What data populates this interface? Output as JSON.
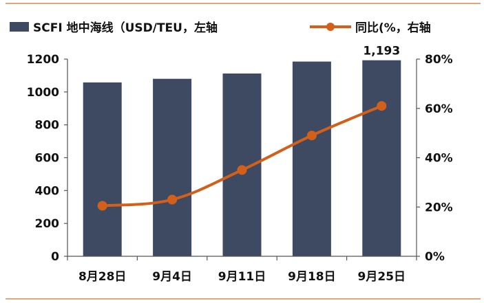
{
  "chart_data": {
    "type": "bar",
    "categories": [
      "8月28日",
      "9月4日",
      "9月11日",
      "9月18日",
      "9月25日"
    ],
    "series": [
      {
        "name": "SCFI 地中海线（USD/TEU，左轴",
        "type": "bar",
        "axis": "left",
        "values": [
          1058,
          1080,
          1112,
          1185,
          1193
        ]
      },
      {
        "name": "同比(%，右轴",
        "type": "line",
        "axis": "right",
        "values": [
          20.5,
          23,
          35,
          49,
          61
        ]
      }
    ],
    "data_labels": [
      {
        "series": 0,
        "index": 4,
        "text": "1,193"
      }
    ],
    "left_axis": {
      "ylim": [
        0,
        1200
      ],
      "ticks": [
        "0",
        "200",
        "400",
        "600",
        "800",
        "1000",
        "1200"
      ]
    },
    "right_axis": {
      "ylim": [
        0,
        80
      ],
      "ticks": [
        "0%",
        "20%",
        "40%",
        "60%",
        "80%"
      ]
    },
    "grid": false,
    "legend_position": "top",
    "colors": {
      "bar": "#3e4a61",
      "line": "#d2601a",
      "axis": "#555555",
      "rule": "#e0a77a"
    }
  }
}
